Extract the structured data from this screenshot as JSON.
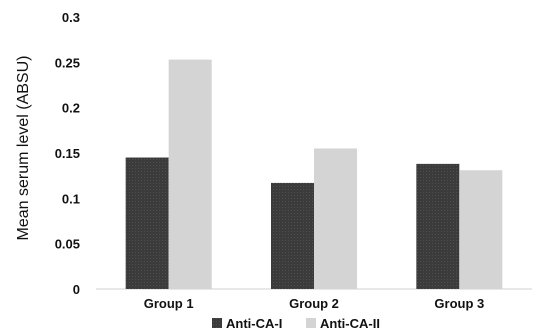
{
  "chart_data": {
    "type": "bar",
    "title": "",
    "xlabel": "",
    "ylabel": "Mean serum level (ABSU)",
    "ylim": [
      0,
      0.3
    ],
    "yticks": [
      "0",
      "0.05",
      "0.1",
      "0.15",
      "0.2",
      "0.25",
      "0.3"
    ],
    "grid": false,
    "legend_position": "bottom",
    "categories": [
      "Group 1",
      "Group 2",
      "Group 3"
    ],
    "series": [
      {
        "name": "Anti-CA-I",
        "values": [
          0.145,
          0.117,
          0.138
        ],
        "color": "#3b3b3b"
      },
      {
        "name": "Anti-CA-II",
        "values": [
          0.253,
          0.155,
          0.131
        ],
        "color": "#d4d4d4"
      }
    ]
  }
}
